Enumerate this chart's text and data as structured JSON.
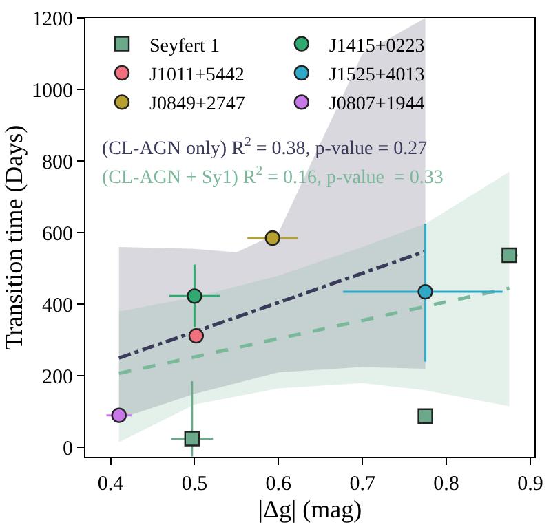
{
  "chart_data": {
    "type": "scatter",
    "xlabel": "|Δg| (mag)",
    "ylabel": "Transition time (Days)",
    "xlim": [
      0.37,
      0.905
    ],
    "xticks": [
      0.4,
      0.5,
      0.6,
      0.7,
      0.8,
      0.9
    ],
    "ylim": [
      -26,
      1200
    ],
    "yticks": [
      0,
      200,
      400,
      600,
      800,
      1000,
      1200
    ],
    "legend": "top left",
    "annotations": [
      "(CL-AGN only) R$^{2}$ = 0.38, p-value = 0.27",
      "(CL-AGN + Sy1) R$^{2}$ = 0.16, p-value  = 0.33"
    ],
    "series": [
      {
        "name": "Seyfert 1",
        "color": "#6aaa8a",
        "marker": "square",
        "x": [
          0.497,
          0.775,
          0.875
        ],
        "values": [
          25,
          88,
          537
        ],
        "errors": [
          [
            -25,
            185
          ],
          null,
          null
        ],
        "xerrors": [
          0.025,
          null,
          0.01
        ]
      },
      {
        "name": "J1415+0223",
        "color": "#2eaa70",
        "marker": "circle",
        "x": [
          0.5
        ],
        "values": [
          423
        ],
        "errors": [
          88
        ],
        "xerrors": [
          0.03
        ]
      },
      {
        "name": "J1011+5442",
        "color": "#f07080",
        "marker": "circle",
        "x": [
          0.502
        ],
        "values": [
          312
        ],
        "errors": [
          null
        ],
        "xerrors": [
          null
        ]
      },
      {
        "name": "J1525+4013",
        "color": "#30a8c8",
        "marker": "circle",
        "x": [
          0.775
        ],
        "values": [
          435
        ],
        "errors": [
          [
            240,
            625
          ]
        ],
        "xerrors": [
          [
            0.677,
            0.867
          ]
        ]
      },
      {
        "name": "J0849+2747",
        "color": "#b5a030",
        "marker": "circle",
        "x": [
          0.593
        ],
        "values": [
          585
        ],
        "errors": [
          null
        ],
        "xerrors": [
          0.03
        ]
      },
      {
        "name": "J0807+1944",
        "color": "#c878e8",
        "marker": "circle",
        "x": [
          0.41
        ],
        "values": [
          90
        ],
        "errors": [
          null
        ],
        "xerrors": [
          0.015
        ]
      },
      {
        "type": "line",
        "color": "#3a3a5a",
        "line_style": "dashdot",
        "x": [
          0.41,
          0.5,
          0.55,
          0.6,
          0.7,
          0.775
        ],
        "values": [
          250,
          323,
          364,
          405,
          487,
          548
        ],
        "lower": [
          80,
          150,
          180,
          210,
          225,
          220
        ],
        "upper": [
          560,
          555,
          545,
          600,
          1100,
          1200
        ]
      },
      {
        "type": "line",
        "color": "#7ab89a",
        "line_style": "dashed",
        "x": [
          0.41,
          0.5,
          0.6,
          0.7,
          0.775,
          0.875
        ],
        "values": [
          207,
          253,
          304,
          355,
          394,
          445
        ],
        "lower": [
          15,
          120,
          165,
          180,
          160,
          115
        ],
        "upper": [
          380,
          420,
          480,
          560,
          625,
          770
        ]
      }
    ]
  }
}
